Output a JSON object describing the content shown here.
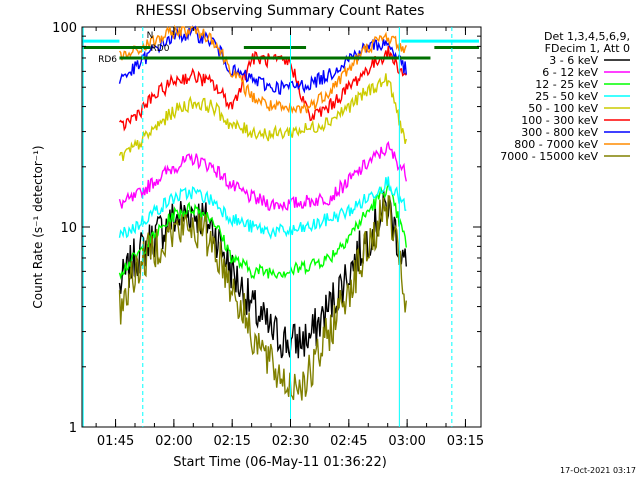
{
  "chart_data": {
    "type": "line",
    "title": "RHESSI Observing Summary Count Rates",
    "xlabel": "Start Time (06-May-11 01:36:22)",
    "ylabel": "Count Rate (s⁻¹ detector⁻¹)",
    "y_scale": "log",
    "ylim": [
      1,
      100
    ],
    "xlim": [
      "01:36:22",
      "03:19:00"
    ],
    "x_ticks": [
      "01:45",
      "02:00",
      "02:15",
      "02:30",
      "02:45",
      "03:00",
      "03:15"
    ],
    "y_ticks": [
      "1",
      "10",
      "100"
    ],
    "legend": {
      "header": [
        "Det 1,3,4,5,6,9,",
        "FDecim 1, Att 0"
      ],
      "placement": "right"
    },
    "series": [
      {
        "name": "3 - 6 keV",
        "color": "#000000",
        "points": [
          [
            "01:46",
            5
          ],
          [
            "01:50",
            7
          ],
          [
            "01:55",
            9
          ],
          [
            "02:00",
            11
          ],
          [
            "02:05",
            12
          ],
          [
            "02:10",
            10
          ],
          [
            "02:15",
            6
          ],
          [
            "02:20",
            4
          ],
          [
            "02:25",
            3
          ],
          [
            "02:30",
            2.6
          ],
          [
            "02:35",
            2.8
          ],
          [
            "02:40",
            4
          ],
          [
            "02:45",
            6
          ],
          [
            "02:50",
            9
          ],
          [
            "02:55",
            13
          ],
          [
            "03:00",
            6
          ]
        ]
      },
      {
        "name": "6 - 12 keV",
        "color": "#ff00ff",
        "points": [
          [
            "01:46",
            13
          ],
          [
            "01:50",
            14
          ],
          [
            "01:55",
            17
          ],
          [
            "02:00",
            20
          ],
          [
            "02:05",
            22
          ],
          [
            "02:10",
            20
          ],
          [
            "02:15",
            16
          ],
          [
            "02:20",
            14
          ],
          [
            "02:25",
            13
          ],
          [
            "02:30",
            13
          ],
          [
            "02:35",
            13.5
          ],
          [
            "02:40",
            14
          ],
          [
            "02:45",
            17
          ],
          [
            "02:50",
            21
          ],
          [
            "02:55",
            25
          ],
          [
            "03:00",
            18
          ]
        ]
      },
      {
        "name": "12 - 25 keV",
        "color": "#00ff00",
        "points": [
          [
            "01:46",
            6
          ],
          [
            "01:50",
            7
          ],
          [
            "01:55",
            9
          ],
          [
            "02:00",
            11.5
          ],
          [
            "02:05",
            12.5
          ],
          [
            "02:10",
            11
          ],
          [
            "02:15",
            7
          ],
          [
            "02:20",
            6
          ],
          [
            "02:25",
            6
          ],
          [
            "02:30",
            6
          ],
          [
            "02:35",
            6.5
          ],
          [
            "02:40",
            7
          ],
          [
            "02:45",
            9
          ],
          [
            "02:50",
            12
          ],
          [
            "02:55",
            16
          ],
          [
            "03:00",
            8
          ]
        ]
      },
      {
        "name": "25 - 50 keV",
        "color": "#00ffff",
        "points": [
          [
            "01:46",
            9
          ],
          [
            "01:50",
            10
          ],
          [
            "01:55",
            12
          ],
          [
            "02:00",
            14
          ],
          [
            "02:05",
            15
          ],
          [
            "02:10",
            13.5
          ],
          [
            "02:15",
            11
          ],
          [
            "02:20",
            10
          ],
          [
            "02:25",
            9.5
          ],
          [
            "02:30",
            9.5
          ],
          [
            "02:35",
            10
          ],
          [
            "02:40",
            11
          ],
          [
            "02:45",
            12
          ],
          [
            "02:50",
            14
          ],
          [
            "02:55",
            17
          ],
          [
            "03:00",
            12
          ]
        ]
      },
      {
        "name": "50 - 100 keV",
        "color": "#cccc00",
        "points": [
          [
            "01:46",
            22
          ],
          [
            "01:50",
            25
          ],
          [
            "01:55",
            31
          ],
          [
            "02:00",
            38
          ],
          [
            "02:05",
            42
          ],
          [
            "02:10",
            40
          ],
          [
            "02:15",
            32
          ],
          [
            "02:20",
            30
          ],
          [
            "02:25",
            29
          ],
          [
            "02:30",
            30
          ],
          [
            "02:35",
            31
          ],
          [
            "02:40",
            34
          ],
          [
            "02:45",
            40
          ],
          [
            "02:50",
            48
          ],
          [
            "02:55",
            55
          ],
          [
            "03:00",
            25
          ]
        ]
      },
      {
        "name": "100 - 300 keV",
        "color": "#ff0000",
        "points": [
          [
            "01:46",
            31
          ],
          [
            "01:50",
            36
          ],
          [
            "01:55",
            45
          ],
          [
            "02:00",
            54
          ],
          [
            "02:05",
            57
          ],
          [
            "02:10",
            52
          ],
          [
            "02:15",
            40
          ],
          [
            "02:20",
            70
          ],
          [
            "02:25",
            68
          ],
          [
            "02:30",
            66
          ],
          [
            "02:35",
            35
          ],
          [
            "02:40",
            40
          ],
          [
            "02:45",
            50
          ],
          [
            "02:50",
            62
          ],
          [
            "02:55",
            75
          ],
          [
            "03:00",
            55
          ]
        ]
      },
      {
        "name": "300 - 800 keV",
        "color": "#0000ff",
        "points": [
          [
            "01:46",
            55
          ],
          [
            "01:50",
            62
          ],
          [
            "01:55",
            78
          ],
          [
            "02:00",
            90
          ],
          [
            "02:05",
            93
          ],
          [
            "02:10",
            85
          ],
          [
            "02:15",
            60
          ],
          [
            "02:20",
            55
          ],
          [
            "02:25",
            50
          ],
          [
            "02:30",
            50
          ],
          [
            "02:35",
            52
          ],
          [
            "02:40",
            58
          ],
          [
            "02:45",
            70
          ],
          [
            "02:50",
            80
          ],
          [
            "02:55",
            83
          ],
          [
            "03:00",
            60
          ]
        ]
      },
      {
        "name": "800 - 7000 keV",
        "color": "#ff8c00",
        "points": [
          [
            "01:46",
            70
          ],
          [
            "01:50",
            75
          ],
          [
            "01:55",
            85
          ],
          [
            "02:00",
            95
          ],
          [
            "02:05",
            98
          ],
          [
            "02:10",
            88
          ],
          [
            "02:15",
            60
          ],
          [
            "02:20",
            45
          ],
          [
            "02:25",
            40
          ],
          [
            "02:30",
            38
          ],
          [
            "02:35",
            40
          ],
          [
            "02:40",
            48
          ],
          [
            "02:45",
            62
          ],
          [
            "02:50",
            80
          ],
          [
            "02:55",
            90
          ],
          [
            "03:00",
            75
          ]
        ]
      },
      {
        "name": "7000 - 15000 keV",
        "color": "#808000",
        "points": [
          [
            "01:46",
            4
          ],
          [
            "01:50",
            6
          ],
          [
            "01:55",
            8
          ],
          [
            "02:00",
            9.5
          ],
          [
            "02:05",
            10
          ],
          [
            "02:10",
            8.5
          ],
          [
            "02:15",
            5
          ],
          [
            "02:20",
            3
          ],
          [
            "02:25",
            2
          ],
          [
            "02:30",
            1.6
          ],
          [
            "02:35",
            1.8
          ],
          [
            "02:40",
            3
          ],
          [
            "02:45",
            5
          ],
          [
            "02:50",
            8
          ],
          [
            "02:55",
            13
          ],
          [
            "03:00",
            4
          ]
        ]
      }
    ],
    "annotations": [
      {
        "label": "N",
        "color": "#00ffff"
      },
      {
        "label": "RD0",
        "color": "#007000"
      },
      {
        "label": "RD6",
        "color": "#007000"
      }
    ],
    "timestamp": "17-Oct-2021 03:17"
  }
}
